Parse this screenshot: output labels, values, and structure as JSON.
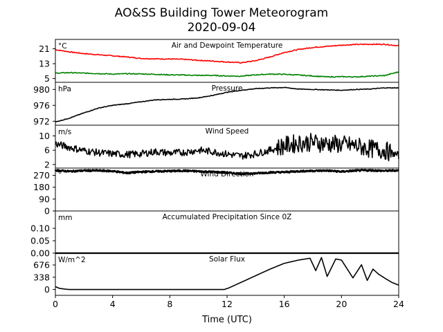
{
  "figure": {
    "title": "AO&SS Building Tower Meteorogram",
    "subtitle": "2020-09-04",
    "xlabel": "Time (UTC)"
  },
  "chart_data": [
    {
      "type": "line",
      "title": "Air and Dewpoint Temperature",
      "unit": "°C",
      "ylim": [
        3,
        26
      ],
      "yticks": [
        "5",
        "13",
        "21"
      ],
      "x": [
        0,
        1,
        2,
        3,
        4,
        5,
        6,
        7,
        8,
        9,
        10,
        11,
        12,
        13,
        14,
        15,
        16,
        17,
        18,
        19,
        20,
        21,
        22,
        23,
        24
      ],
      "series": [
        {
          "color": "#ff0000",
          "values": [
            20.5,
            19.3,
            18.4,
            17.8,
            17.2,
            16.6,
            15.8,
            15.6,
            15.5,
            15.3,
            14.8,
            14.4,
            13.9,
            13.5,
            14.6,
            16.6,
            19.0,
            20.6,
            21.7,
            22.3,
            22.9,
            23.3,
            23.4,
            23.4,
            22.6
          ]
        },
        {
          "color": "#008000",
          "values": [
            7.9,
            8.2,
            7.9,
            7.7,
            7.4,
            7.6,
            7.5,
            7.3,
            7.0,
            6.9,
            6.7,
            6.7,
            6.4,
            6.3,
            7.0,
            7.4,
            7.3,
            6.9,
            6.4,
            5.9,
            6.0,
            5.9,
            6.3,
            6.6,
            8.6
          ]
        }
      ]
    },
    {
      "type": "line",
      "title": "Pressure",
      "unit": "hPa",
      "ylim": [
        971.0,
        981.8
      ],
      "yticks": [
        "972",
        "976",
        "980"
      ],
      "x": [
        0,
        1,
        2,
        3,
        4,
        5,
        6,
        7,
        8,
        9,
        10,
        11,
        12,
        13,
        14,
        15,
        16,
        17,
        18,
        19,
        20,
        21,
        22,
        23,
        24
      ],
      "series": [
        {
          "color": "#000000",
          "values": [
            971.8,
            972.8,
            974.1,
            975.3,
            976.0,
            976.4,
            976.9,
            977.4,
            977.5,
            977.6,
            977.9,
            978.5,
            979.3,
            979.8,
            980.2,
            980.4,
            980.5,
            980.1,
            980.0,
            979.9,
            979.8,
            980.0,
            980.1,
            980.4,
            980.4
          ]
        }
      ]
    },
    {
      "type": "line",
      "title": "Wind Speed",
      "unit": "m/s",
      "ylim": [
        1,
        13
      ],
      "yticks": [
        "2",
        "6",
        "10"
      ],
      "x": [
        0,
        1,
        2,
        3,
        4,
        5,
        6,
        7,
        8,
        9,
        10,
        11,
        12,
        13,
        14,
        15,
        16,
        17,
        18,
        19,
        20,
        21,
        22,
        23,
        24
      ],
      "series": [
        {
          "color": "#000000",
          "values": [
            7.8,
            6.8,
            5.9,
            5.3,
            5.0,
            4.8,
            5.0,
            5.6,
            5.2,
            5.4,
            6.0,
            5.6,
            4.9,
            4.4,
            5.0,
            6.0,
            7.3,
            8.0,
            8.2,
            7.8,
            7.6,
            7.2,
            6.4,
            6.0,
            4.5
          ]
        }
      ]
    },
    {
      "type": "line",
      "title": "Wind Direction",
      "unit": "°",
      "ylim": [
        0,
        325
      ],
      "yticks": [
        "0",
        "90",
        "180",
        "270"
      ],
      "x": [
        0,
        1,
        2,
        3,
        4,
        5,
        6,
        7,
        8,
        9,
        10,
        11,
        12,
        13,
        14,
        15,
        16,
        17,
        18,
        19,
        20,
        21,
        22,
        23,
        24
      ],
      "series": [
        {
          "color": "#000000",
          "values": [
            308,
            300,
            306,
            306,
            302,
            288,
            296,
            300,
            302,
            305,
            300,
            296,
            290,
            282,
            285,
            292,
            294,
            301,
            304,
            306,
            298,
            306,
            308,
            304,
            308
          ]
        }
      ]
    },
    {
      "type": "line",
      "title": "Accumulated Precipitation Since 0Z",
      "unit": "mm",
      "ylim": [
        0,
        0.17
      ],
      "yticks": [
        "0.00",
        "0.05",
        "0.10"
      ],
      "x": [
        0,
        24
      ],
      "series": [
        {
          "color": "#000000",
          "values": [
            0,
            0
          ]
        }
      ]
    },
    {
      "type": "line",
      "title": "Solar Flux",
      "unit": "W/m^2",
      "ylim": [
        -160,
        1000
      ],
      "yticks": [
        "0",
        "338",
        "676"
      ],
      "x": [
        0,
        0.3,
        0.7,
        1,
        2,
        4,
        6,
        8,
        10,
        11.8,
        12.1,
        13,
        14,
        15,
        16,
        17,
        17.8,
        18.2,
        18.6,
        19,
        19.6,
        20,
        20.8,
        21.4,
        21.8,
        22.2,
        22.6,
        23,
        23.5,
        24
      ],
      "series": [
        {
          "color": "#000000",
          "values": [
            80,
            30,
            10,
            0,
            0,
            0,
            0,
            0,
            0,
            0,
            40,
            200,
            380,
            560,
            720,
            810,
            860,
            520,
            880,
            360,
            840,
            810,
            320,
            680,
            250,
            560,
            420,
            320,
            200,
            120
          ]
        }
      ]
    }
  ],
  "xaxis": {
    "ticks": [
      0,
      4,
      8,
      12,
      16,
      20,
      24
    ],
    "tick_labels": [
      "0",
      "4",
      "8",
      "12",
      "16",
      "20",
      "24"
    ],
    "xlim": [
      0,
      24
    ]
  }
}
